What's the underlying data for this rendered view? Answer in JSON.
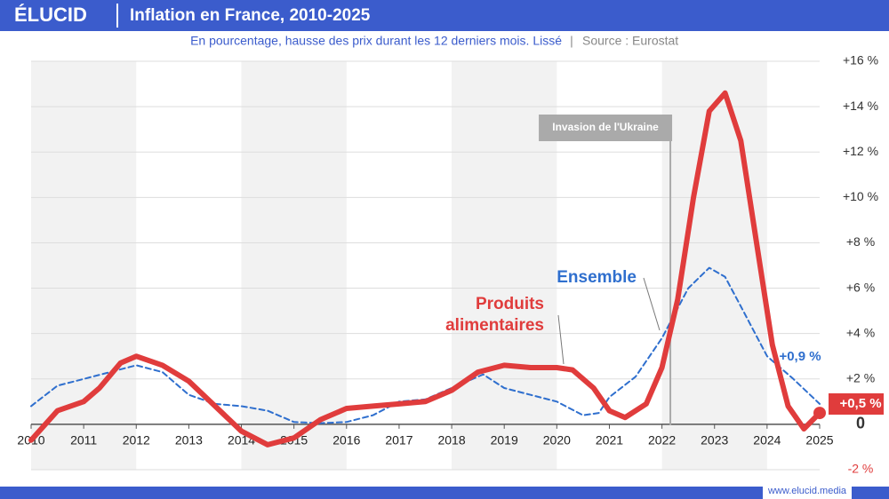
{
  "brand": "ÉLUCID",
  "footer": "www.elucid.media",
  "chart_data": {
    "type": "line",
    "title": "Inflation en France, 2010-2025",
    "subtitle": "En pourcentage, hausse des prix durant les 12 derniers mois. Lissé",
    "source": "Source : Eurostat",
    "xlim": [
      2010,
      2025
    ],
    "xticks": [
      2010,
      2011,
      2012,
      2013,
      2014,
      2015,
      2016,
      2017,
      2018,
      2019,
      2020,
      2021,
      2022,
      2023,
      2024,
      2025
    ],
    "ylim": [
      -2,
      16
    ],
    "yticks": [
      {
        "value": -2,
        "label": "-2 %"
      },
      0,
      {
        "value": 2,
        "label": "+2 %"
      },
      {
        "value": 4,
        "label": "+4 %"
      },
      {
        "value": 6,
        "label": "+6 %"
      },
      {
        "value": 8,
        "label": "+8 %"
      },
      {
        "value": 10,
        "label": "+10 %"
      },
      {
        "value": 12,
        "label": "+12 %"
      },
      {
        "value": 14,
        "label": "+14 %"
      },
      {
        "value": 16,
        "label": "+16 %"
      }
    ],
    "grid": true,
    "annotation": {
      "text": "Invasion de l'Ukraine",
      "x": 2022.16
    },
    "series": [
      {
        "name": "Ensemble",
        "color": "#2f6fce",
        "dashed": true,
        "end_label": "+0,9 %",
        "x": [
          2010,
          2010.5,
          2011,
          2011.5,
          2012,
          2012.5,
          2013,
          2013.5,
          2014,
          2014.5,
          2015,
          2015.5,
          2016,
          2016.5,
          2017,
          2017.5,
          2018,
          2018.6,
          2019,
          2019.5,
          2020,
          2020.5,
          2020.8,
          2021,
          2021.5,
          2022,
          2022.5,
          2022.9,
          2023.2,
          2023.5,
          2024,
          2024.5,
          2025
        ],
        "values": [
          0.8,
          1.7,
          2.0,
          2.3,
          2.6,
          2.3,
          1.3,
          0.9,
          0.8,
          0.6,
          0.1,
          0.05,
          0.1,
          0.4,
          1.0,
          1.1,
          1.6,
          2.2,
          1.6,
          1.3,
          1.0,
          0.4,
          0.5,
          1.2,
          2.1,
          3.8,
          6.0,
          6.9,
          6.5,
          5.2,
          3.0,
          2.0,
          0.9
        ]
      },
      {
        "name": "Produits alimentaires",
        "color": "#e03c3c",
        "dashed": false,
        "end_label": "+0,5 %",
        "x": [
          2010,
          2010.5,
          2011,
          2011.3,
          2011.7,
          2012,
          2012.5,
          2013,
          2013.5,
          2014,
          2014.5,
          2015,
          2015.5,
          2016,
          2016.5,
          2017,
          2017.5,
          2018,
          2018.5,
          2019,
          2019.5,
          2020,
          2020.3,
          2020.7,
          2021,
          2021.3,
          2021.7,
          2022,
          2022.3,
          2022.6,
          2022.9,
          2023.2,
          2023.5,
          2023.8,
          2024.1,
          2024.4,
          2024.7,
          2025
        ],
        "values": [
          -0.7,
          0.6,
          1.0,
          1.6,
          2.7,
          3.0,
          2.6,
          1.9,
          0.8,
          -0.3,
          -0.9,
          -0.6,
          0.2,
          0.7,
          0.8,
          0.9,
          1.0,
          1.5,
          2.3,
          2.6,
          2.5,
          2.5,
          2.4,
          1.6,
          0.6,
          0.3,
          0.9,
          2.5,
          5.5,
          10.0,
          13.8,
          14.6,
          12.5,
          8.0,
          3.5,
          0.8,
          -0.2,
          0.5
        ]
      }
    ]
  }
}
